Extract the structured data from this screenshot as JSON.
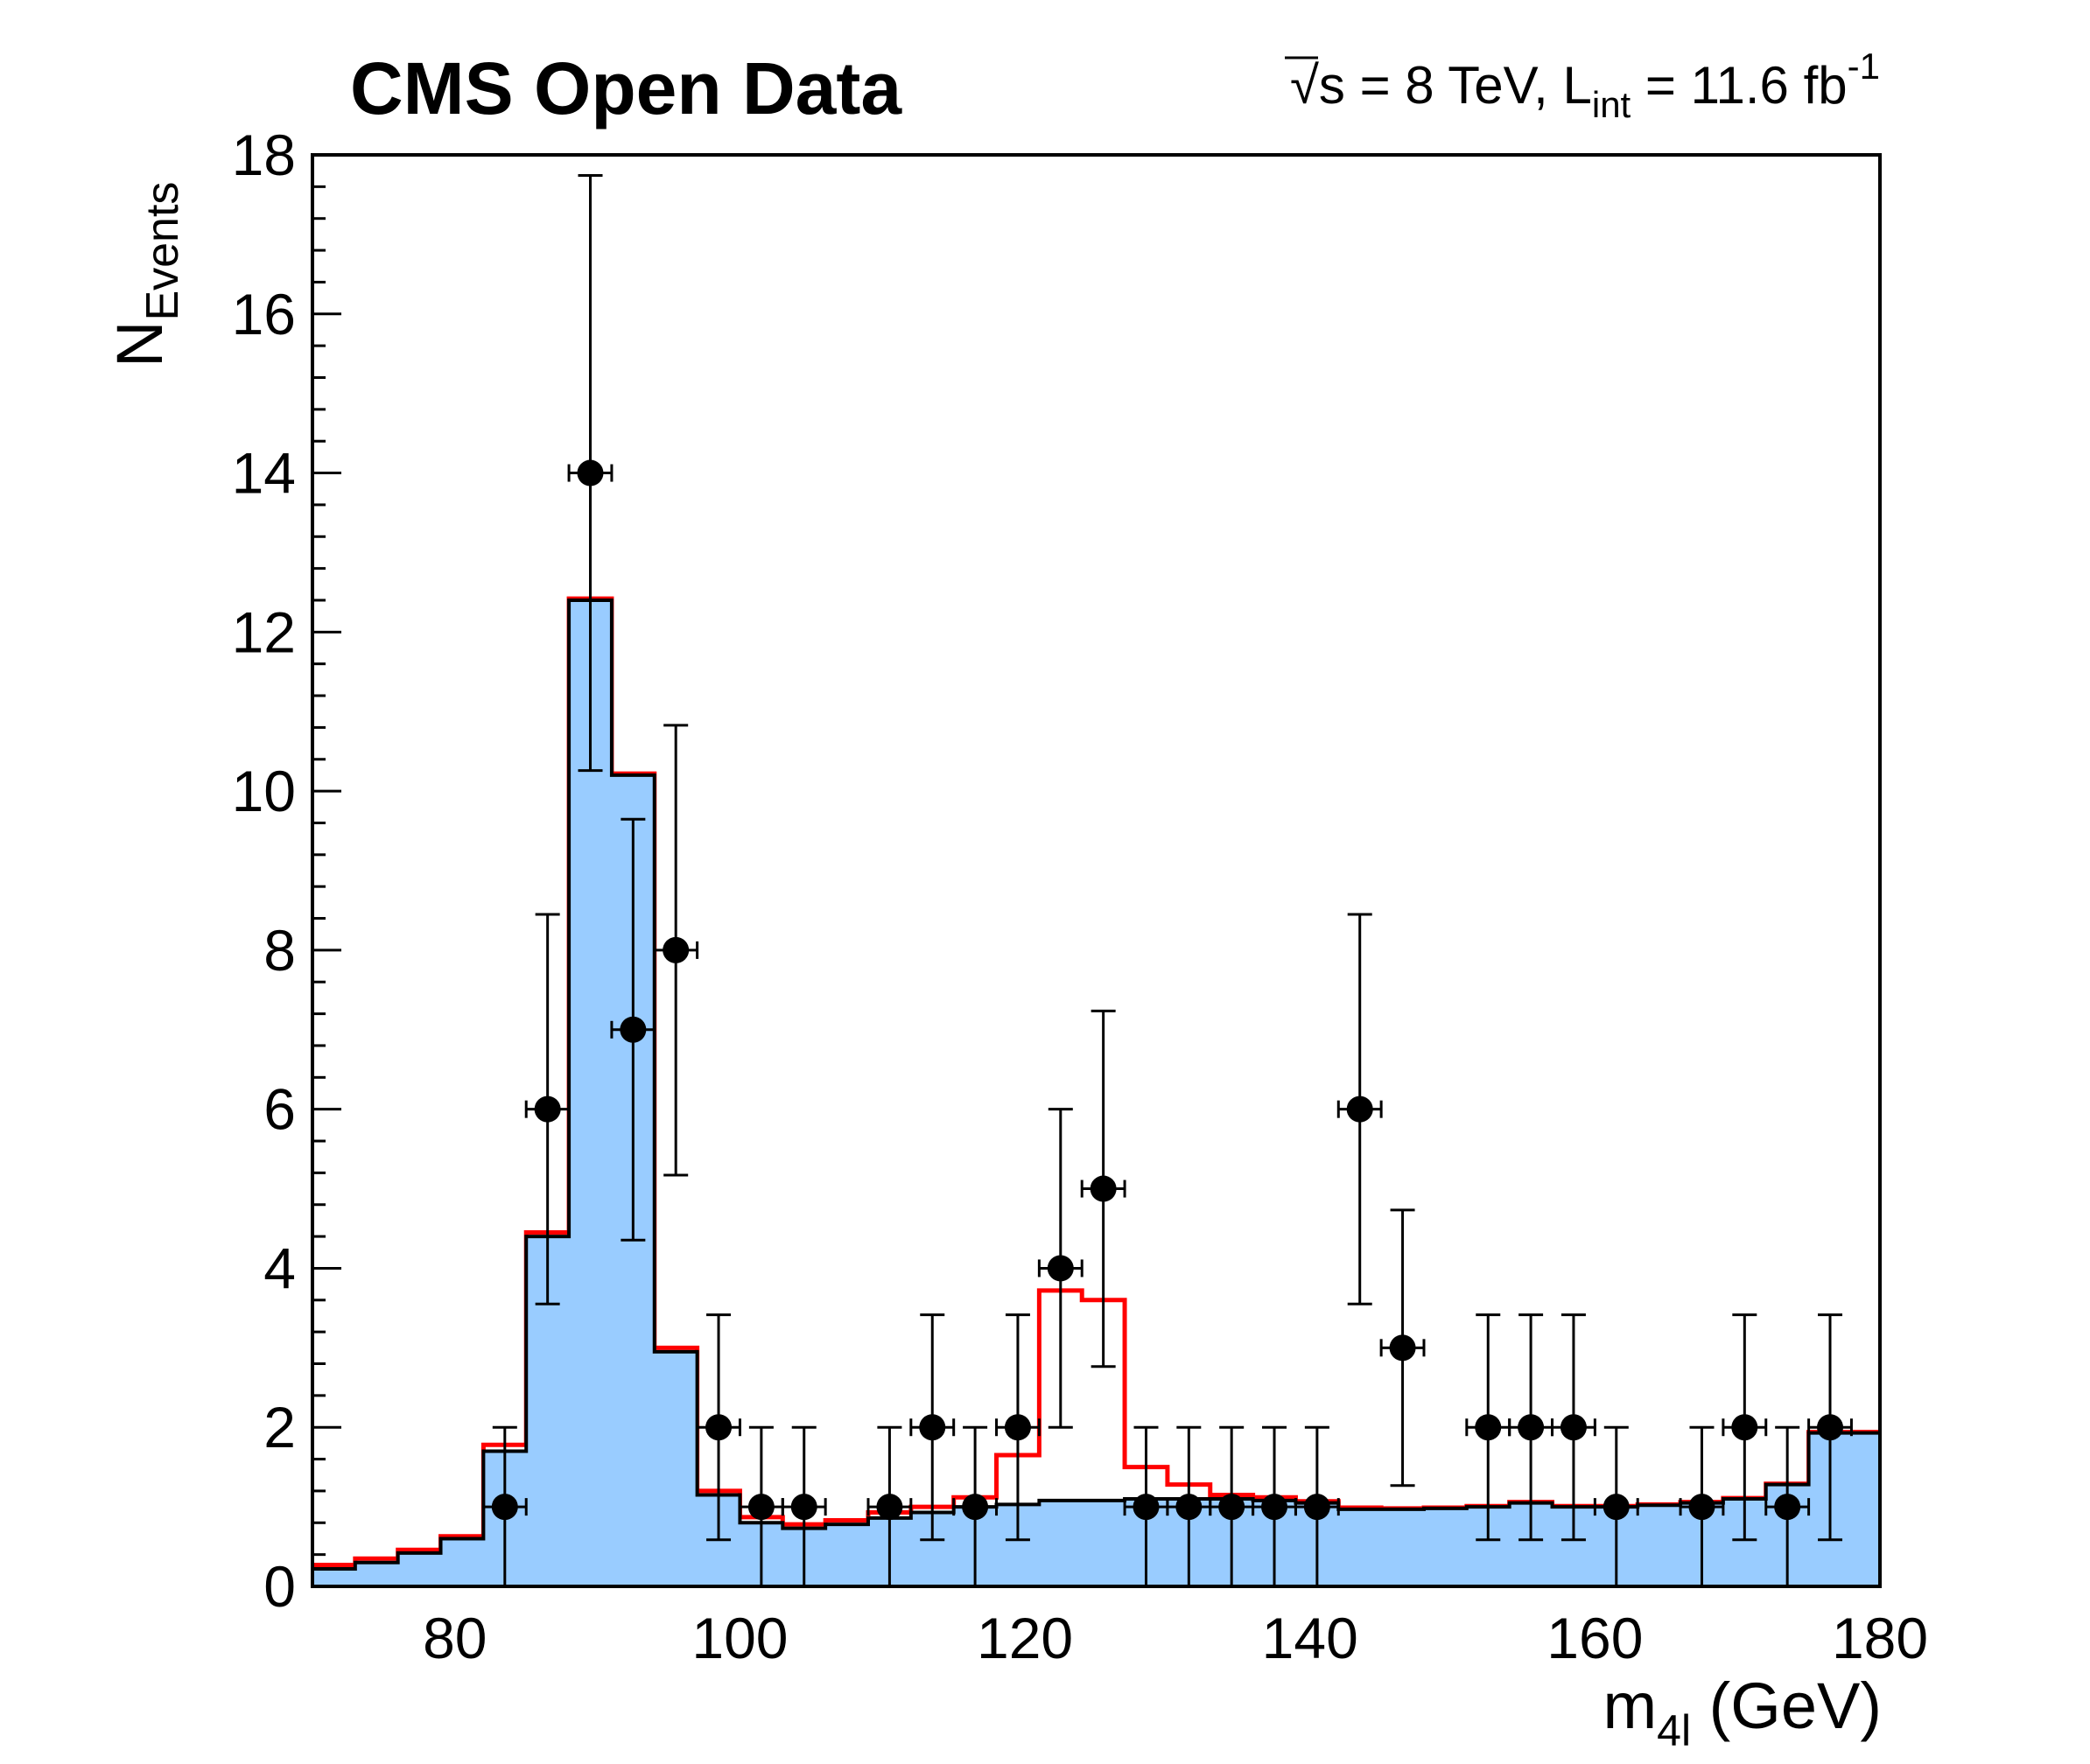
{
  "header": {
    "title": "CMS Open Data",
    "lumi_pre": "√s = 8 TeV, L",
    "lumi_sub": "int",
    "lumi_mid": " = 11.6 fb",
    "lumi_sup": "-1"
  },
  "axes": {
    "x": {
      "title_main": "m",
      "title_sub": "4l",
      "title_rest": " (GeV)",
      "min": 70,
      "max": 180,
      "ticks": [
        80,
        100,
        120,
        140,
        160,
        180
      ]
    },
    "y": {
      "title_main": "N",
      "title_sub": "Events",
      "min": 0,
      "max": 18,
      "ticks": [
        0,
        2,
        4,
        6,
        8,
        10,
        12,
        14,
        16,
        18
      ],
      "minor_step": 0.4
    }
  },
  "colors": {
    "background": "#FFFFFF",
    "frame": "#000000",
    "zz_fill": "#99CCFF",
    "hist_border": "#000000",
    "signal_line": "#FF0000",
    "data_marker": "#000000"
  },
  "chart_data": {
    "type": "bar",
    "title": "CMS Open Data",
    "subtitle": "√s = 8 TeV, L_int = 11.6 fb^-1",
    "xlabel": "m_4l (GeV)",
    "ylabel": "N_Events",
    "xlim": [
      70,
      180
    ],
    "ylim": [
      0,
      18
    ],
    "grid": false,
    "legend": "none",
    "bin_edges_start": 70,
    "bin_width_gev": 3,
    "n_bins": 37,
    "series": [
      {
        "name": "ZZ background (light blue filled histogram)",
        "style": "filled-step-histogram",
        "color": "#99CCFF",
        "values": [
          0.22,
          0.3,
          0.42,
          0.6,
          1.7,
          4.4,
          12.4,
          10.2,
          2.95,
          1.15,
          0.8,
          0.73,
          0.78,
          0.86,
          0.93,
          1.0,
          1.03,
          1.08,
          1.08,
          1.1,
          1.1,
          1.1,
          1.08,
          1.05,
          0.97,
          0.97,
          0.98,
          1.0,
          1.05,
          1.0,
          1.0,
          1.02,
          1.05,
          1.1,
          1.28,
          1.93,
          1.93
        ]
      },
      {
        "name": "Higgs signal (m_H = 125 GeV) + background (red line histogram)",
        "style": "step-histogram-line",
        "color": "#FF0000",
        "values": [
          0.27,
          0.35,
          0.46,
          0.63,
          1.78,
          4.45,
          12.42,
          10.22,
          3.0,
          1.2,
          0.87,
          0.78,
          0.83,
          0.93,
          1.0,
          1.12,
          1.65,
          3.72,
          3.6,
          1.5,
          1.28,
          1.15,
          1.12,
          1.07,
          0.99,
          0.98,
          0.99,
          1.01,
          1.06,
          1.01,
          1.01,
          1.03,
          1.06,
          1.11,
          1.29,
          1.94,
          1.94
        ]
      },
      {
        "name": "Data (black points, sqrt(N) error bars, x error = half bin width 1.5 GeV)",
        "style": "scatter-errorbars",
        "color": "#000000",
        "points": [
          {
            "x": 83.5,
            "y": 1
          },
          {
            "x": 86.5,
            "y": 6
          },
          {
            "x": 89.5,
            "y": 14
          },
          {
            "x": 92.5,
            "y": 7
          },
          {
            "x": 95.5,
            "y": 8
          },
          {
            "x": 98.5,
            "y": 2
          },
          {
            "x": 101.5,
            "y": 1
          },
          {
            "x": 104.5,
            "y": 1
          },
          {
            "x": 110.5,
            "y": 1
          },
          {
            "x": 113.5,
            "y": 2
          },
          {
            "x": 116.5,
            "y": 1
          },
          {
            "x": 119.5,
            "y": 2
          },
          {
            "x": 122.5,
            "y": 4
          },
          {
            "x": 125.5,
            "y": 5
          },
          {
            "x": 128.5,
            "y": 1
          },
          {
            "x": 131.5,
            "y": 1
          },
          {
            "x": 134.5,
            "y": 1
          },
          {
            "x": 137.5,
            "y": 1
          },
          {
            "x": 140.5,
            "y": 1
          },
          {
            "x": 143.5,
            "y": 6
          },
          {
            "x": 146.5,
            "y": 3
          },
          {
            "x": 152.5,
            "y": 2
          },
          {
            "x": 155.5,
            "y": 2
          },
          {
            "x": 158.5,
            "y": 2
          },
          {
            "x": 161.5,
            "y": 1
          },
          {
            "x": 167.5,
            "y": 1
          },
          {
            "x": 170.5,
            "y": 2
          },
          {
            "x": 173.5,
            "y": 1
          },
          {
            "x": 176.5,
            "y": 2
          }
        ]
      }
    ]
  }
}
